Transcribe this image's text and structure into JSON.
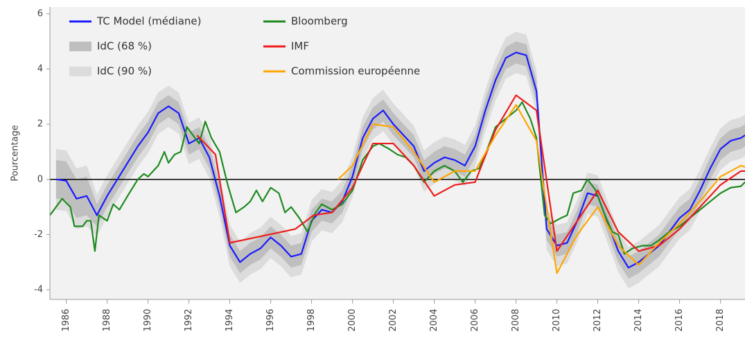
{
  "chart_data": {
    "type": "line",
    "ylabel": "Pourcentage",
    "xlim": [
      1985.2,
      2019.2
    ],
    "ylim": [
      -4.35,
      6.25
    ],
    "xticks": [
      1986,
      1988,
      1990,
      1992,
      1994,
      1996,
      1998,
      2000,
      2002,
      2004,
      2006,
      2008,
      2010,
      2012,
      2014,
      2016,
      2018
    ],
    "yticks": [
      -4,
      -2,
      0,
      2,
      4,
      6
    ],
    "zeroline": true,
    "background": "#f2f2f2",
    "x": [
      1985.5,
      1986,
      1986.5,
      1987,
      1987.5,
      1988,
      1988.5,
      1989,
      1989.5,
      1990,
      1990.5,
      1991,
      1991.5,
      1992,
      1992.5,
      1993,
      1993.5,
      1994,
      1994.5,
      1995,
      1995.5,
      1996,
      1996.5,
      1997,
      1997.5,
      1998,
      1998.5,
      1999,
      1999.5,
      2000,
      2000.5,
      2001,
      2001.5,
      2002,
      2002.5,
      2003,
      2003.5,
      2004,
      2004.5,
      2005,
      2005.5,
      2006,
      2006.5,
      2007,
      2007.5,
      2008,
      2008.5,
      2009,
      2009.5,
      2010,
      2010.5,
      2011,
      2011.5,
      2012,
      2012.5,
      2013,
      2013.5,
      2014,
      2014.5,
      2015,
      2015.5,
      2016,
      2016.5,
      2017,
      2017.5,
      2018,
      2018.5,
      2019,
      2019.2
    ],
    "bands": [
      {
        "name": "IdC (90 %)",
        "color": "#dcdcdc",
        "lower": [
          -1.1,
          -1.15,
          -1.8,
          -1.7,
          -2.05,
          -1.35,
          -0.75,
          -0.15,
          0.45,
          0.95,
          1.65,
          1.9,
          1.65,
          0.55,
          0.75,
          0.05,
          -1.35,
          -3.15,
          -3.75,
          -3.45,
          -3.25,
          -2.85,
          -3.15,
          -3.55,
          -3.45,
          -2.25,
          -1.85,
          -1.95,
          -1.55,
          -0.65,
          0.75,
          1.45,
          1.75,
          1.25,
          0.85,
          0.45,
          -0.45,
          -0.15,
          0.05,
          -0.05,
          -0.25,
          0.45,
          1.75,
          2.85,
          3.65,
          3.85,
          3.75,
          2.45,
          -2.55,
          -3.15,
          -3.05,
          -2.25,
          -1.25,
          -1.35,
          -2.35,
          -3.35,
          -3.95,
          -3.75,
          -3.45,
          -3.15,
          -2.65,
          -2.15,
          -1.85,
          -1.15,
          -0.35,
          0.35,
          0.65,
          0.75,
          0.85
        ],
        "upper": [
          1.1,
          1.05,
          0.4,
          0.5,
          -0.55,
          0.15,
          0.75,
          1.35,
          1.95,
          2.45,
          3.15,
          3.4,
          3.15,
          2.05,
          2.25,
          1.55,
          0.15,
          -1.65,
          -2.25,
          -1.95,
          -1.75,
          -1.35,
          -1.65,
          -2.05,
          -1.95,
          -0.75,
          -0.35,
          -0.45,
          -0.05,
          0.85,
          2.25,
          2.95,
          3.25,
          2.75,
          2.35,
          1.95,
          1.05,
          1.35,
          1.55,
          1.45,
          1.25,
          1.95,
          3.25,
          4.35,
          5.15,
          5.35,
          5.25,
          3.95,
          -1.05,
          -1.65,
          -1.55,
          -0.75,
          0.25,
          0.15,
          -0.85,
          -1.85,
          -2.45,
          -2.25,
          -1.95,
          -1.65,
          -1.15,
          -0.65,
          -0.35,
          0.35,
          1.15,
          1.85,
          2.15,
          2.25,
          2.35
        ]
      },
      {
        "name": "IdC (68 %)",
        "color": "#bfbfbf",
        "lower": [
          -0.7,
          -0.75,
          -1.4,
          -1.3,
          -1.7,
          -1.0,
          -0.4,
          0.2,
          0.8,
          1.3,
          2.0,
          2.25,
          2.0,
          0.9,
          1.1,
          0.4,
          -1.0,
          -2.8,
          -3.4,
          -3.1,
          -2.9,
          -2.5,
          -2.8,
          -3.2,
          -3.1,
          -1.9,
          -1.5,
          -1.6,
          -1.2,
          -0.3,
          1.1,
          1.8,
          2.1,
          1.6,
          1.2,
          0.8,
          -0.1,
          0.2,
          0.4,
          0.3,
          0.1,
          0.8,
          2.1,
          3.2,
          4.0,
          4.2,
          4.1,
          2.8,
          -2.2,
          -2.8,
          -2.7,
          -1.9,
          -0.9,
          -1.0,
          -2.0,
          -3.0,
          -3.6,
          -3.4,
          -3.1,
          -2.8,
          -2.3,
          -1.8,
          -1.5,
          -0.8,
          0.0,
          0.7,
          1.0,
          1.1,
          1.2
        ],
        "upper": [
          0.7,
          0.65,
          0.0,
          0.1,
          -0.9,
          -0.2,
          0.4,
          1.0,
          1.6,
          2.1,
          2.8,
          3.05,
          2.8,
          1.7,
          1.9,
          1.2,
          -0.2,
          -2.0,
          -2.6,
          -2.3,
          -2.1,
          -1.7,
          -2.0,
          -2.4,
          -2.3,
          -1.1,
          -0.7,
          -0.8,
          -0.4,
          0.5,
          1.9,
          2.6,
          2.9,
          2.4,
          2.0,
          1.6,
          0.7,
          1.0,
          1.2,
          1.1,
          0.9,
          1.6,
          2.9,
          4.0,
          4.8,
          5.0,
          4.9,
          3.6,
          -1.4,
          -2.0,
          -1.9,
          -1.1,
          -0.1,
          -0.2,
          -1.2,
          -2.2,
          -2.8,
          -2.6,
          -2.3,
          -2.0,
          -1.5,
          -1.0,
          -0.7,
          0.0,
          0.8,
          1.5,
          1.8,
          1.9,
          2.0
        ]
      }
    ],
    "series": [
      {
        "name": "TC Model (médiane)",
        "color": "#1a1aff",
        "values": [
          0.0,
          -0.05,
          -0.7,
          -0.6,
          -1.3,
          -0.6,
          0.0,
          0.6,
          1.2,
          1.7,
          2.4,
          2.65,
          2.4,
          1.3,
          1.5,
          0.8,
          -0.6,
          -2.4,
          -3.0,
          -2.7,
          -2.5,
          -2.1,
          -2.4,
          -2.8,
          -2.7,
          -1.5,
          -1.1,
          -1.2,
          -0.8,
          0.1,
          1.5,
          2.2,
          2.5,
          2.0,
          1.6,
          1.2,
          0.3,
          0.6,
          0.8,
          0.7,
          0.5,
          1.2,
          2.5,
          3.6,
          4.4,
          4.6,
          4.5,
          3.2,
          -1.8,
          -2.4,
          -2.3,
          -1.5,
          -0.5,
          -0.6,
          -1.6,
          -2.6,
          -3.2,
          -3.0,
          -2.7,
          -2.4,
          -1.9,
          -1.4,
          -1.1,
          -0.4,
          0.4,
          1.1,
          1.4,
          1.5,
          1.6
        ]
      },
      {
        "name": "Bloomberg",
        "color": "#1e8a1e",
        "x": [
          1985.2,
          1985.8,
          1986.2,
          1986.4,
          1986.8,
          1987,
          1987.2,
          1987.4,
          1987.6,
          1988,
          1988.3,
          1988.6,
          1989,
          1989.5,
          1989.8,
          1990,
          1990.5,
          1990.8,
          1991,
          1991.3,
          1991.6,
          1991.9,
          1992.2,
          1992.5,
          1992.8,
          1993.1,
          1993.5,
          1993.9,
          1994.3,
          1994.7,
          1995,
          1995.3,
          1995.6,
          1996,
          1996.4,
          1996.7,
          1997,
          1997.4,
          1997.8,
          1998.2,
          1998.5,
          1999,
          1999.5,
          2000,
          2000.5,
          2001,
          2001.3,
          2001.8,
          2002.2,
          2002.6,
          2003,
          2003.5,
          2004,
          2004.5,
          2005,
          2005.4,
          2005.8,
          2006.2,
          2006.6,
          2007,
          2007.5,
          2008,
          2008.3,
          2008.7,
          2009,
          2009.4,
          2009.7,
          2010.2,
          2010.5,
          2010.8,
          2011.2,
          2011.5,
          2011.9,
          2012.3,
          2012.7,
          2013,
          2013.3,
          2013.7,
          2014.2,
          2014.6,
          2015,
          2015.5,
          2016,
          2016.5,
          2017,
          2017.5,
          2018,
          2018.5,
          2019,
          2019.2
        ],
        "values": [
          -1.3,
          -0.7,
          -1.0,
          -1.7,
          -1.7,
          -1.5,
          -1.5,
          -2.6,
          -1.3,
          -1.5,
          -0.9,
          -1.1,
          -0.6,
          0.0,
          0.2,
          0.1,
          0.5,
          1.0,
          0.6,
          0.9,
          1.0,
          1.9,
          1.6,
          1.3,
          2.1,
          1.5,
          1.0,
          -0.2,
          -1.2,
          -1.0,
          -0.8,
          -0.4,
          -0.8,
          -0.3,
          -0.5,
          -1.2,
          -1.0,
          -1.4,
          -1.9,
          -1.2,
          -0.9,
          -1.1,
          -0.9,
          -0.4,
          0.7,
          1.2,
          1.3,
          1.1,
          0.9,
          0.8,
          0.5,
          -0.1,
          0.3,
          0.5,
          0.3,
          -0.1,
          0.3,
          0.4,
          1.1,
          1.9,
          2.2,
          2.5,
          2.8,
          2.2,
          1.5,
          -1.3,
          -1.6,
          -1.4,
          -1.3,
          -0.5,
          -0.4,
          0.0,
          -0.4,
          -1.2,
          -1.9,
          -2.0,
          -2.7,
          -2.5,
          -2.4,
          -2.4,
          -2.2,
          -1.9,
          -1.7,
          -1.4,
          -1.1,
          -0.8,
          -0.5,
          -0.3,
          -0.25,
          -0.1
        ]
      },
      {
        "name": "IMF",
        "color": "#ee1c1c",
        "x": [
          1992.4,
          1993.3,
          1994,
          1997.2,
          1998.1,
          1999,
          2000,
          2001,
          2002,
          2003,
          2004,
          2005,
          2006,
          2007,
          2008,
          2009,
          2010,
          2012,
          2013,
          2014,
          2015,
          2016,
          2017,
          2018,
          2019,
          2019.2
        ],
        "values": [
          1.6,
          0.9,
          -2.3,
          -1.8,
          -1.3,
          -1.2,
          -0.3,
          1.3,
          1.3,
          0.5,
          -0.6,
          -0.2,
          -0.1,
          1.8,
          3.05,
          2.5,
          -2.6,
          -0.4,
          -1.9,
          -2.6,
          -2.4,
          -1.8,
          -1.0,
          -0.2,
          0.3,
          0.3
        ]
      },
      {
        "name": "Commission européenne",
        "color": "#ffa500",
        "x": [
          1999.3,
          2000,
          2001,
          2002,
          2003,
          2004,
          2005,
          2006,
          2007,
          2008,
          2009,
          2010,
          2011,
          2012,
          2013,
          2014,
          2015,
          2016,
          2017,
          2018,
          2019,
          2019.2
        ],
        "values": [
          0.0,
          0.5,
          2.0,
          1.9,
          1.0,
          -0.1,
          0.3,
          0.3,
          1.6,
          2.7,
          1.4,
          -3.4,
          -2.0,
          -1.0,
          -2.4,
          -3.1,
          -2.3,
          -1.6,
          -0.8,
          0.1,
          0.5,
          0.45
        ]
      }
    ]
  }
}
